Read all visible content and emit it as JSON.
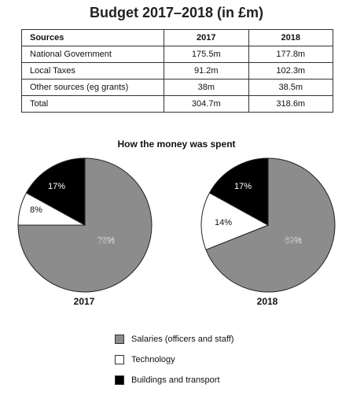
{
  "title": "Budget 2017–2018 (in £m)",
  "table": {
    "headers": [
      "Sources",
      "2017",
      "2018"
    ],
    "rows": [
      [
        "National Government",
        "175.5m",
        "177.8m"
      ],
      [
        "Local Taxes",
        "91.2m",
        "102.3m"
      ],
      [
        "Other sources (eg grants)",
        "38m",
        "38.5m"
      ],
      [
        "Total",
        "304.7m",
        "318.6m"
      ]
    ]
  },
  "chart_title": "How the money was spent",
  "chart_data": [
    {
      "type": "pie",
      "title": "2017",
      "labels": [
        "Salaries (officers and staff)",
        "Technology",
        "Buildings and transport"
      ],
      "values": [
        75,
        8,
        17
      ],
      "value_labels": [
        "75%",
        "8%",
        "17%"
      ],
      "colors": [
        "#8c8c8c",
        "#ffffff",
        "#000000"
      ]
    },
    {
      "type": "pie",
      "title": "2018",
      "labels": [
        "Salaries (officers and staff)",
        "Technology",
        "Buildings and transport"
      ],
      "values": [
        69,
        14,
        17
      ],
      "value_labels": [
        "69%",
        "14%",
        "17%"
      ],
      "colors": [
        "#8c8c8c",
        "#ffffff",
        "#000000"
      ]
    }
  ],
  "legend": [
    {
      "label": "Salaries (officers and staff)",
      "color": "#8c8c8c"
    },
    {
      "label": "Technology",
      "color": "#ffffff"
    },
    {
      "label": "Buildings and transport",
      "color": "#000000"
    }
  ]
}
